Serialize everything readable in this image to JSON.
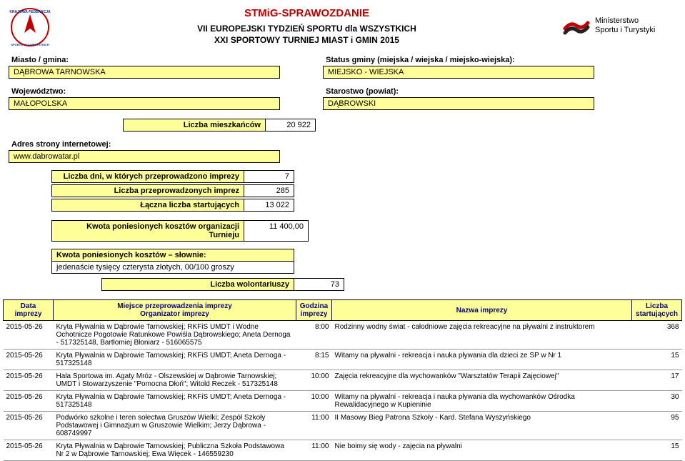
{
  "header": {
    "title_main": "STMiG-SPRAWOZDANIE",
    "title_sub1": "VII EUROPEJSKI TYDZIEŃ SPORTU dla WSZYSTKICH",
    "title_sub2": "XXI SPORTOWY TURNIEJ MIAST i GMIN 2015",
    "ministry_line1": "Ministerstwo",
    "ministry_line2": "Sportu i Turystyki"
  },
  "left_info": {
    "miasto_label": "Miasto / gmina:",
    "miasto_value": "DĄBROWA TARNOWSKA",
    "woj_label": "Województwo:",
    "woj_value": "MAŁOPOLSKA",
    "adres_label": "Adres strony internetowej:",
    "adres_value": "www.dabrowatar.pl"
  },
  "right_info": {
    "status_label": "Status gminy (miejska / wiejska / miejsko-wiejska):",
    "status_value": "MIEJSKO - WIEJSKA",
    "star_label": "Starostwo (powiat):",
    "star_value": "DĄBROWSKI"
  },
  "stats": {
    "mieszk_label": "Liczba mieszkańców",
    "mieszk_value": "20 922",
    "dni_label": "Liczba dni, w których przeprowadzono imprezy",
    "dni_value": "7",
    "imprez_label": "Liczba przeprowadzonych imprez",
    "imprez_value": "285",
    "start_label": "Łączna liczba startujących",
    "start_value": "13 022",
    "kwota_label": "Kwota poniesionych kosztów organizacji Turnieju",
    "kwota_value": "11 400,00",
    "kwota_sl_label": "Kwota poniesionych kosztów – słownie:",
    "kwota_sl_value": "jedenaście tysięcy czterysta złotych, 00/100 groszy",
    "wol_label": "Liczba wolontariuszy",
    "wol_value": "73"
  },
  "table": {
    "headers": {
      "date": "Data imprezy",
      "place": "Miejsce przeprowadzenia imprezy\nOrganizator imprezy",
      "time": "Godzina imprezy",
      "name": "Nazwa imprezy",
      "count": "Liczba startujących"
    },
    "rows": [
      {
        "date": "2015-05-26",
        "place": "Kryta Pływalnia w Dąbrowie Tarnowskiej; RKFiS UMDT i Wodne Ochotnicze Pogotowie Ratunkowe Powiśla Dąbrowskiego; Aneta Dernoga - 517325148, Bartłomiej Błoniarz - 516065575",
        "time": "8:00",
        "name": "Rodzinny wodny świat - całodniowe zajęcia rekreacyjne na pływalni z instruktorem",
        "count": "368"
      },
      {
        "date": "2015-05-26",
        "place": "Kryta Pływalnia w Dąbrowie Tarnowskiej; RKFiS UMDT; Aneta Dernoga - 517325148",
        "time": "8:15",
        "name": "Witamy na pływalni - rekreacja i nauka pływania dla dzieci ze SP w Nr 1",
        "count": "15"
      },
      {
        "date": "2015-05-26",
        "place": "Hala Sportowa im. Agaty Mróz - Olszewskiej w Dąbrowie Tarnowskiej; UMDT i Stowarzyszenie \"Pomocna Dłoń\"; Witold Reczek - 517325148",
        "time": "10:00",
        "name": "Zajęcia rekreacyjne dla wychowanków \"Warsztatów Terapii Zajęciowej\"",
        "count": "17"
      },
      {
        "date": "2015-05-26",
        "place": "Kryta Pływalnia w Dąbrowie Tarnowskiej; RKFiS UMDT; Aneta Dernoga - 517325148",
        "time": "10:00",
        "name": "Witamy na pływalni - rekreacja i nauka pływania dla wychowanków Ośrodka Rewalidacyjnego w Kupieninie",
        "count": "30"
      },
      {
        "date": "2015-05-26",
        "place": "Podwórko szkolne i teren sołectwa Gruszów Wielki; Zespół Szkoły Podstawowej i Gimnazjum w Gruszowie Wielkim; Jerzy Dąbrowa - 608749997",
        "time": "11:00",
        "name": "II Masowy Bieg Patrona Szkoły - Kard. Stefana Wyszyńskiego",
        "count": "95"
      },
      {
        "date": "2015-05-26",
        "place": "Kryta Pływalnia w Dąbrowie Tarnowskiej; Publiczna Szkoła Podstawowa Nr 2 w Dąbrowie Tarnowskiej; Ewa Więcek - 146559230",
        "time": "11:00",
        "name": "Nie boimy się wody - zajęcia na pływalni",
        "count": "15"
      }
    ]
  }
}
